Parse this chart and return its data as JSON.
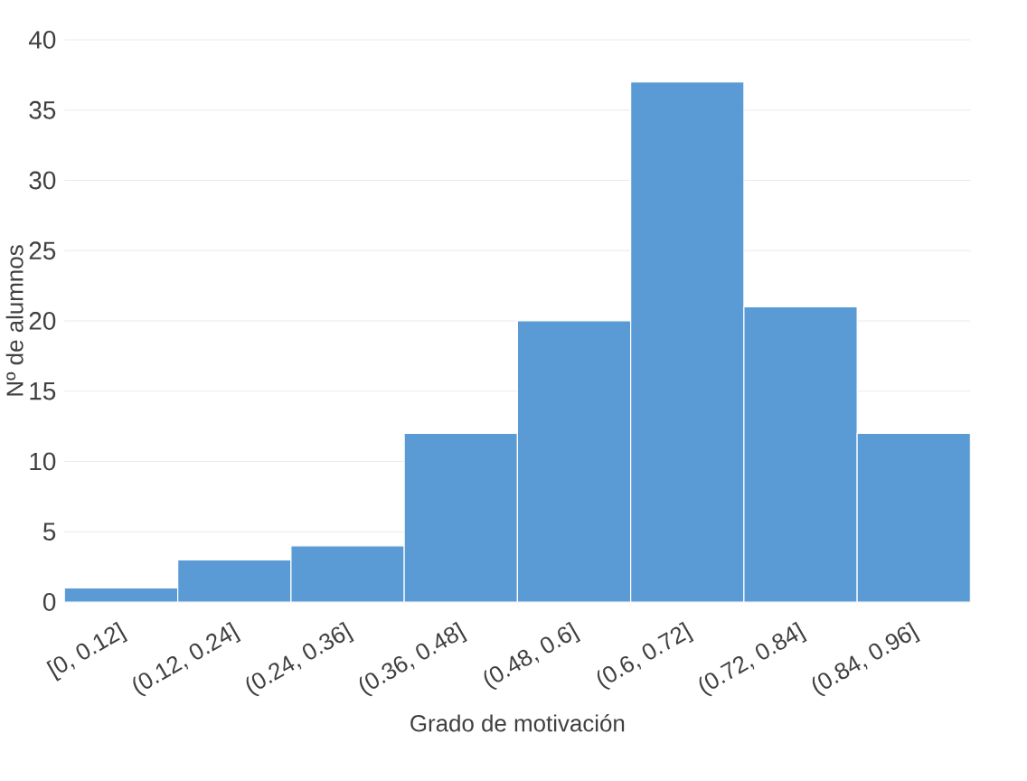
{
  "chart_data": {
    "type": "bar",
    "xlabel": "Grado de motivación",
    "ylabel": "Nº de alumnos",
    "categories": [
      "[0, 0.12]",
      "(0.12, 0.24]",
      "(0.24, 0.36]",
      "(0.36, 0.48]",
      "(0.48, 0.6]",
      "(0.6, 0.72]",
      "(0.72, 0.84]",
      "(0.84, 0.96]"
    ],
    "values": [
      1,
      3,
      4,
      12,
      20,
      37,
      21,
      12
    ],
    "color": "#5b9bd5",
    "ylim": [
      0,
      40
    ],
    "yticks": [
      0,
      5,
      10,
      15,
      20,
      25,
      30,
      35,
      40
    ],
    "grid": "y"
  }
}
